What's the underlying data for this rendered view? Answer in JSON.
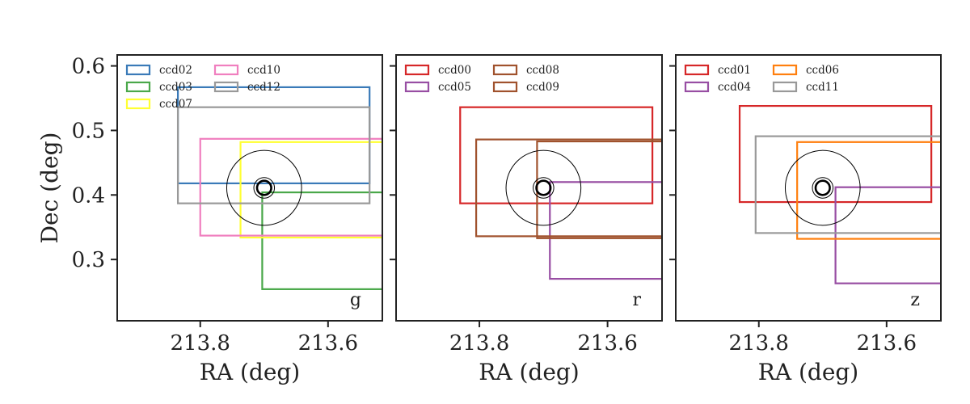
{
  "chart_data": [
    {
      "type": "rectangles",
      "band": "g",
      "xlabel": "RA (deg)",
      "ylabel": "Dec (deg)",
      "xlim": [
        213.93,
        213.515
      ],
      "ylim": [
        0.205,
        0.617
      ],
      "xticks": [
        213.8,
        213.6
      ],
      "xtick_labels": [
        "213.8",
        "213.6"
      ],
      "yticks": [
        0.3,
        0.4,
        0.5,
        0.6
      ],
      "ytick_labels": [
        "0.3",
        "0.4",
        "0.5",
        "0.6"
      ],
      "legend_position": "top-left",
      "target": {
        "ra": 213.7,
        "dec": 0.411,
        "radii": [
          0.058,
          0.016,
          0.011
        ]
      },
      "series": [
        {
          "name": "ccd02",
          "color": "#3a7ab8",
          "ra_range": [
            213.835,
            213.535
          ],
          "dec_range": [
            0.418,
            0.567
          ]
        },
        {
          "name": "ccd03",
          "color": "#4aa84a",
          "ra_range": [
            213.703,
            213.413
          ],
          "dec_range": [
            0.254,
            0.404
          ]
        },
        {
          "name": "ccd07",
          "color": "#ffff33",
          "ra_range": [
            213.737,
            213.446
          ],
          "dec_range": [
            0.334,
            0.482
          ]
        },
        {
          "name": "ccd10",
          "color": "#f07fbf",
          "ra_range": [
            213.8,
            213.5
          ],
          "dec_range": [
            0.337,
            0.487
          ]
        },
        {
          "name": "ccd12",
          "color": "#999999",
          "ra_range": [
            213.835,
            213.535
          ],
          "dec_range": [
            0.387,
            0.536
          ]
        }
      ]
    },
    {
      "type": "rectangles",
      "band": "r",
      "xlabel": "RA (deg)",
      "ylabel": "",
      "xlim": [
        213.93,
        213.515
      ],
      "ylim": [
        0.205,
        0.617
      ],
      "xticks": [
        213.8,
        213.6
      ],
      "xtick_labels": [
        "213.8",
        "213.6"
      ],
      "yticks": [
        0.3,
        0.4,
        0.5,
        0.6
      ],
      "ytick_labels": [],
      "legend_position": "top-left",
      "target": {
        "ra": 213.7,
        "dec": 0.411,
        "radii": [
          0.058,
          0.016,
          0.011
        ]
      },
      "series": [
        {
          "name": "ccd00",
          "color": "#d62728",
          "ra_range": [
            213.83,
            213.53
          ],
          "dec_range": [
            0.387,
            0.536
          ]
        },
        {
          "name": "ccd05",
          "color": "#984ea3",
          "ra_range": [
            213.69,
            213.39
          ],
          "dec_range": [
            0.27,
            0.42
          ]
        },
        {
          "name": "ccd08",
          "color": "#a0522d",
          "ra_range": [
            213.805,
            213.505
          ],
          "dec_range": [
            0.336,
            0.486
          ]
        },
        {
          "name": "ccd09",
          "color": "#a0522d",
          "ra_range": [
            213.71,
            213.41
          ],
          "dec_range": [
            0.333,
            0.483
          ]
        }
      ]
    },
    {
      "type": "rectangles",
      "band": "z",
      "xlabel": "RA (deg)",
      "ylabel": "",
      "xlim": [
        213.93,
        213.515
      ],
      "ylim": [
        0.205,
        0.617
      ],
      "xticks": [
        213.8,
        213.6
      ],
      "xtick_labels": [
        "213.8",
        "213.6"
      ],
      "yticks": [
        0.3,
        0.4,
        0.5,
        0.6
      ],
      "ytick_labels": [],
      "legend_position": "top-left",
      "target": {
        "ra": 213.7,
        "dec": 0.411,
        "radii": [
          0.058,
          0.016,
          0.011
        ]
      },
      "series": [
        {
          "name": "ccd01",
          "color": "#d62728",
          "ra_range": [
            213.83,
            213.53
          ],
          "dec_range": [
            0.389,
            0.538
          ]
        },
        {
          "name": "ccd04",
          "color": "#984ea3",
          "ra_range": [
            213.68,
            213.38
          ],
          "dec_range": [
            0.263,
            0.412
          ]
        },
        {
          "name": "ccd06",
          "color": "#ff7f0e",
          "ra_range": [
            213.74,
            213.44
          ],
          "dec_range": [
            0.332,
            0.482
          ]
        },
        {
          "name": "ccd11",
          "color": "#999999",
          "ra_range": [
            213.805,
            213.505
          ],
          "dec_range": [
            0.341,
            0.491
          ]
        }
      ]
    }
  ]
}
